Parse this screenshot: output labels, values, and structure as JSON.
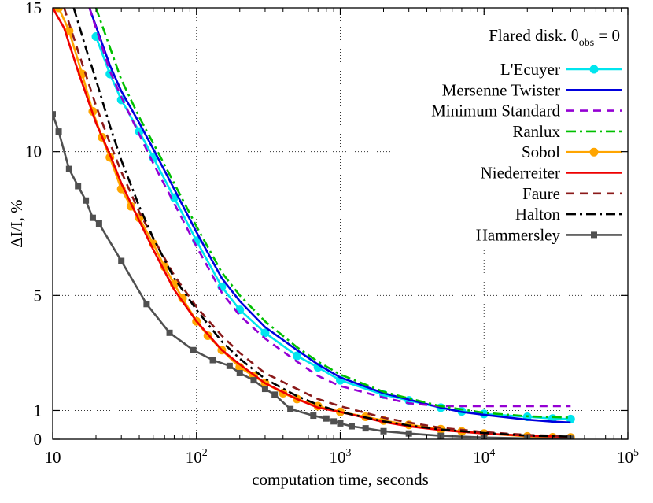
{
  "chart_data": {
    "type": "line",
    "title": "",
    "xlabel": "computation time, seconds",
    "ylabel": "ΔI/I, %",
    "x_scale": "log",
    "xlim": [
      10,
      100000
    ],
    "ylim": [
      0,
      15
    ],
    "x_ticks": [
      {
        "value": 10,
        "base": "10",
        "exp": ""
      },
      {
        "value": 100,
        "base": "10",
        "exp": "2"
      },
      {
        "value": 1000,
        "base": "10",
        "exp": "3"
      },
      {
        "value": 10000,
        "base": "10",
        "exp": "4"
      },
      {
        "value": 100000,
        "base": "10",
        "exp": "5"
      }
    ],
    "y_ticks": [
      0,
      1,
      5,
      10,
      15
    ],
    "grid": "dotted",
    "legend": {
      "position": "top-right",
      "title": {
        "text": "Flared disk. θ",
        "sub": "obs",
        "suffix": " = 0"
      }
    },
    "series": [
      {
        "name": "L'Ecuyer",
        "color": "#00e5ee",
        "style": "solid",
        "marker": "circle",
        "x": [
          20,
          25,
          30,
          40,
          50,
          70,
          100,
          150,
          200,
          300,
          500,
          700,
          1000,
          2000,
          3000,
          5000,
          7000,
          10000,
          20000,
          30000,
          40000
        ],
        "y": [
          14.0,
          12.7,
          11.8,
          10.7,
          9.8,
          8.4,
          6.9,
          5.3,
          4.5,
          3.7,
          2.9,
          2.5,
          2.05,
          1.55,
          1.35,
          1.1,
          0.97,
          0.88,
          0.78,
          0.72,
          0.7
        ]
      },
      {
        "name": "Mersenne Twister",
        "color": "#0000dd",
        "style": "solid",
        "marker": "none",
        "x": [
          18,
          25,
          30,
          40,
          50,
          70,
          100,
          150,
          200,
          300,
          500,
          700,
          1000,
          2000,
          3000,
          5000,
          7000,
          10000,
          20000,
          30000,
          40000
        ],
        "y": [
          15.0,
          13.0,
          12.1,
          11.0,
          10.1,
          8.7,
          7.2,
          5.6,
          4.8,
          3.9,
          3.1,
          2.6,
          2.15,
          1.6,
          1.38,
          1.1,
          0.95,
          0.85,
          0.68,
          0.61,
          0.58
        ]
      },
      {
        "name": "Minimum Standard",
        "color": "#9400d3",
        "style": "dash",
        "marker": "none",
        "x": [
          18,
          25,
          30,
          40,
          50,
          70,
          100,
          150,
          200,
          300,
          500,
          700,
          1000,
          2000,
          3000,
          5000,
          10000,
          20000,
          40000
        ],
        "y": [
          15.0,
          12.8,
          11.9,
          10.6,
          9.6,
          8.2,
          6.7,
          5.1,
          4.3,
          3.5,
          2.7,
          2.2,
          1.85,
          1.45,
          1.25,
          1.15,
          1.15,
          1.15,
          1.15
        ]
      },
      {
        "name": "Ranlux",
        "color": "#00c000",
        "style": "dashdot",
        "marker": "none",
        "x": [
          20,
          30,
          40,
          50,
          70,
          100,
          150,
          200,
          300,
          500,
          700,
          1000,
          2000,
          3000,
          5000,
          10000,
          20000,
          40000
        ],
        "y": [
          15.0,
          12.5,
          11.2,
          10.3,
          8.9,
          7.4,
          5.8,
          5.0,
          4.1,
          3.2,
          2.7,
          2.25,
          1.65,
          1.42,
          1.15,
          0.92,
          0.8,
          0.75
        ]
      },
      {
        "name": "Sobol",
        "color": "#ffa500",
        "style": "solid",
        "marker": "circle",
        "x": [
          11,
          13,
          16,
          19,
          22,
          25,
          30,
          35,
          40,
          50,
          60,
          70,
          80,
          100,
          120,
          150,
          200,
          250,
          300,
          400,
          500,
          700,
          1000,
          1500,
          2000,
          3000,
          5000,
          7000,
          10000,
          20000,
          30000,
          40000
        ],
        "y": [
          15.0,
          14.2,
          12.7,
          11.4,
          10.5,
          9.8,
          8.7,
          8.1,
          7.7,
          6.8,
          6.0,
          5.4,
          4.9,
          4.1,
          3.6,
          3.1,
          2.5,
          2.2,
          1.95,
          1.6,
          1.4,
          1.15,
          0.95,
          0.78,
          0.65,
          0.5,
          0.35,
          0.27,
          0.2,
          0.1,
          0.07,
          0.06
        ]
      },
      {
        "name": "Niederreiter",
        "color": "#ee0000",
        "style": "solid",
        "marker": "none",
        "x": [
          10,
          12,
          15,
          20,
          25,
          30,
          40,
          50,
          70,
          100,
          150,
          200,
          300,
          500,
          700,
          1000,
          2000,
          3000,
          5000,
          10000,
          20000,
          40000
        ],
        "y": [
          15.0,
          14.3,
          12.8,
          11.0,
          9.9,
          8.9,
          7.6,
          6.6,
          5.2,
          4.1,
          3.1,
          2.6,
          1.95,
          1.4,
          1.1,
          0.95,
          0.6,
          0.45,
          0.32,
          0.2,
          0.12,
          0.08
        ]
      },
      {
        "name": "Faure",
        "color": "#8b1a1a",
        "style": "dash",
        "marker": "none",
        "x": [
          12,
          15,
          20,
          25,
          30,
          40,
          50,
          70,
          100,
          150,
          200,
          300,
          500,
          700,
          1000,
          2000,
          3000,
          5000,
          10000,
          20000,
          40000
        ],
        "y": [
          15.0,
          13.5,
          11.6,
          10.3,
          9.3,
          7.9,
          7.0,
          5.7,
          4.6,
          3.6,
          3.0,
          2.3,
          1.75,
          1.4,
          1.15,
          0.75,
          0.58,
          0.4,
          0.25,
          0.15,
          0.1
        ]
      },
      {
        "name": "Halton",
        "color": "#000000",
        "style": "dashdot",
        "marker": "none",
        "x": [
          14,
          17,
          20,
          25,
          30,
          40,
          50,
          70,
          100,
          150,
          200,
          300,
          500,
          700,
          1000,
          2000,
          3000,
          5000,
          10000,
          20000,
          40000
        ],
        "y": [
          15.0,
          13.6,
          12.5,
          10.9,
          9.7,
          8.1,
          7.0,
          5.6,
          4.5,
          3.4,
          2.8,
          2.1,
          1.5,
          1.2,
          0.95,
          0.62,
          0.48,
          0.34,
          0.22,
          0.13,
          0.09
        ]
      },
      {
        "name": "Hammersley",
        "color": "#505050",
        "style": "solid",
        "marker": "square",
        "x": [
          10,
          11,
          13,
          15,
          17,
          19,
          21,
          30,
          45,
          65,
          95,
          130,
          170,
          200,
          250,
          300,
          350,
          450,
          650,
          800,
          900,
          1000,
          1200,
          1500,
          2000,
          3000,
          5000,
          10000,
          20000,
          40000
        ],
        "y": [
          11.3,
          10.7,
          9.4,
          8.8,
          8.3,
          7.7,
          7.5,
          6.2,
          4.7,
          3.7,
          3.1,
          2.75,
          2.55,
          2.3,
          2.05,
          1.75,
          1.55,
          1.05,
          0.82,
          0.72,
          0.62,
          0.55,
          0.45,
          0.38,
          0.28,
          0.2,
          0.12,
          0.06,
          0.03,
          0.02
        ]
      }
    ]
  }
}
